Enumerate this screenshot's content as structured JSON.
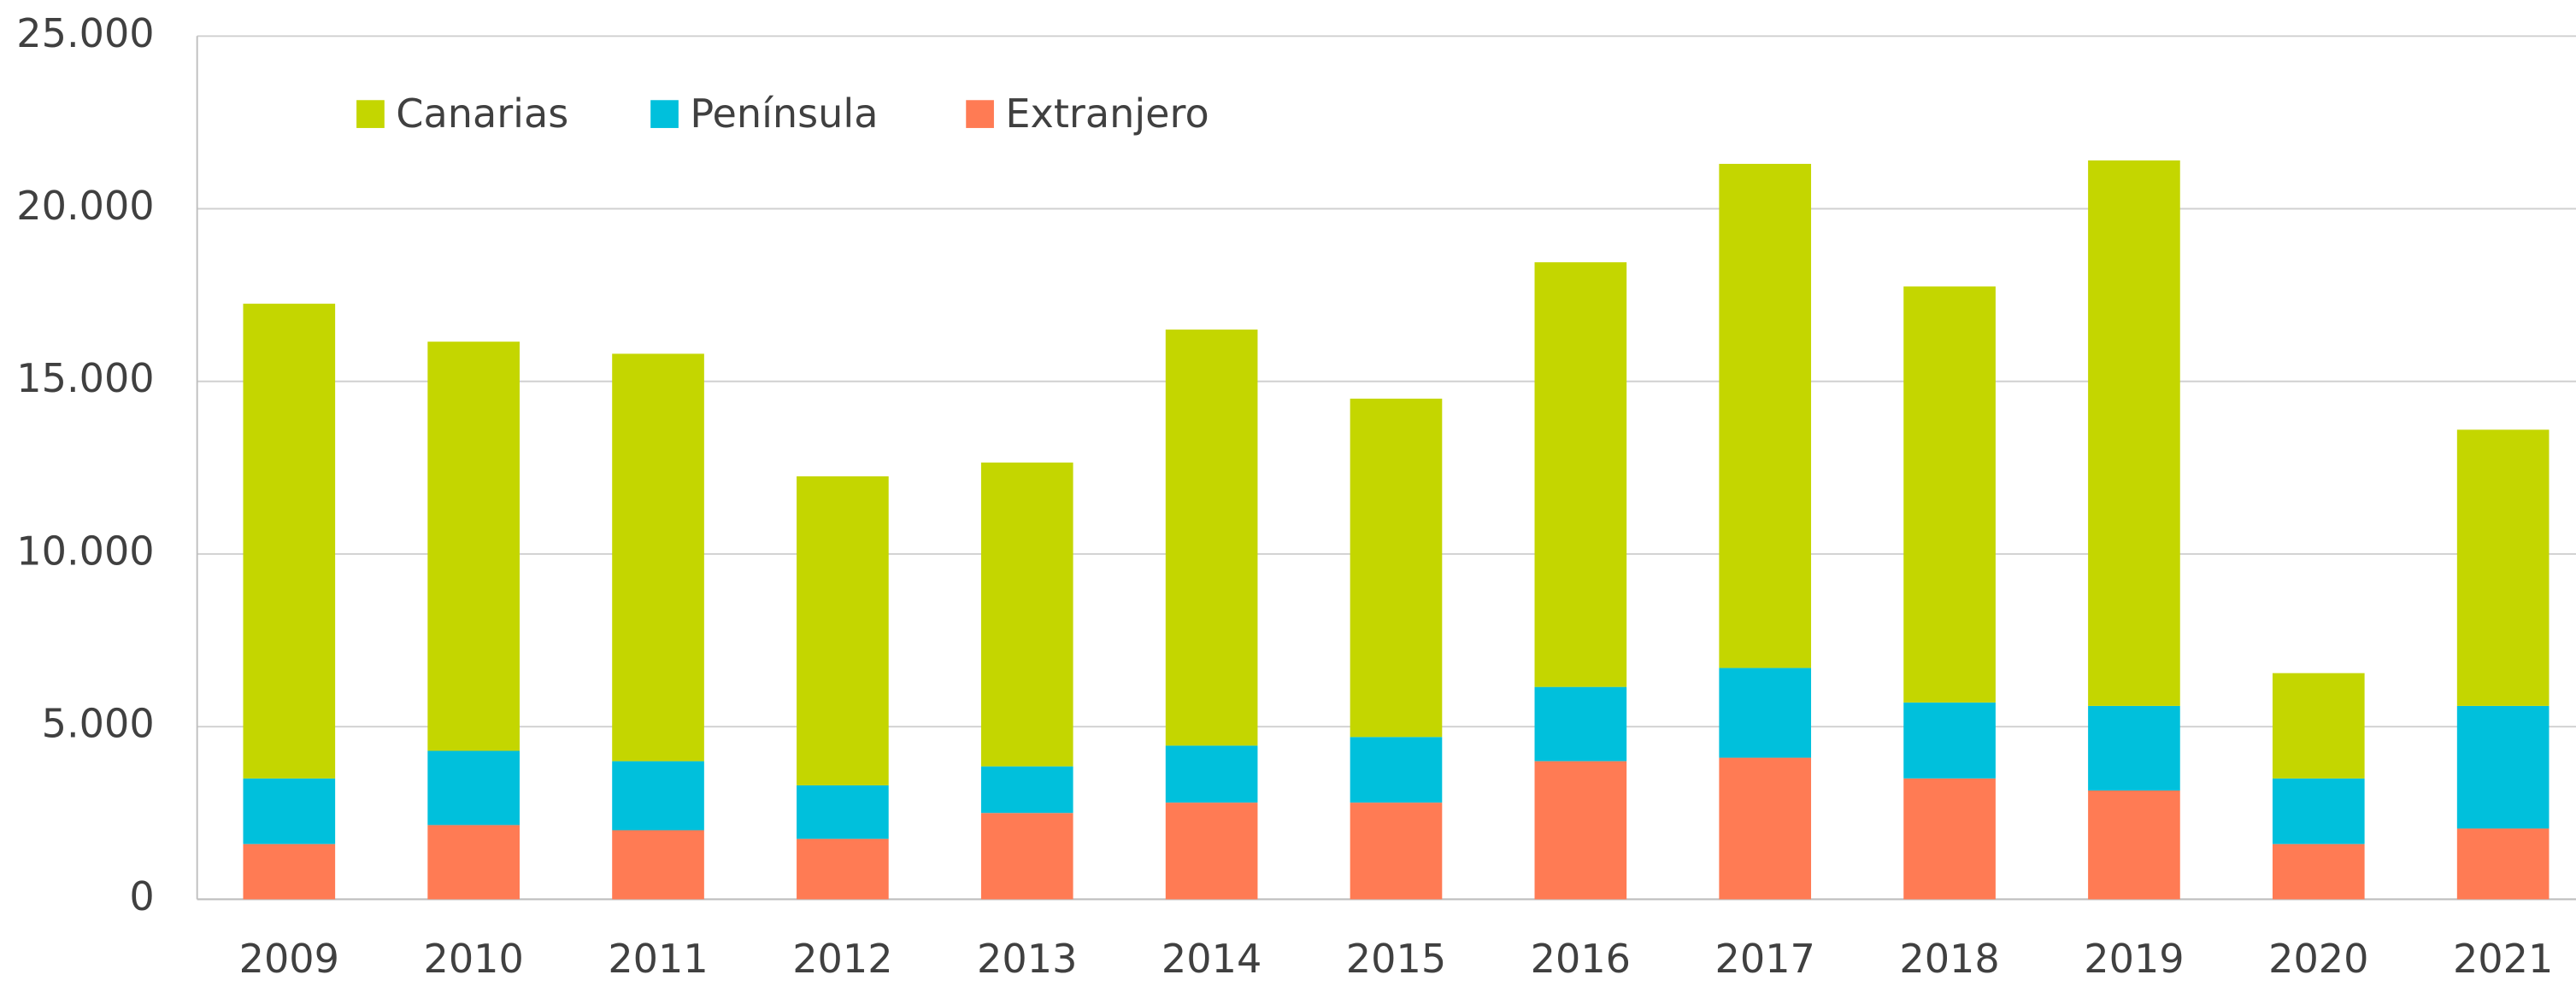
{
  "chart_data": {
    "type": "stacked_bar",
    "categories": [
      "2009",
      "2010",
      "2011",
      "2012",
      "2013",
      "2014",
      "2015",
      "2016",
      "2017",
      "2018",
      "2019",
      "2020",
      "2021"
    ],
    "series": [
      {
        "name": "Canarias",
        "color": "#c4d600",
        "values": [
          13750,
          11850,
          11800,
          8950,
          8800,
          12050,
          9800,
          12300,
          14600,
          12050,
          15800,
          3050,
          8000
        ]
      },
      {
        "name": "Península",
        "color": "#00c0dc",
        "values": [
          1900,
          2150,
          2000,
          1550,
          1350,
          1650,
          1900,
          2150,
          2600,
          2200,
          2450,
          1900,
          3550
        ]
      },
      {
        "name": "Extranjero",
        "color": "#ff7b54",
        "values": [
          1600,
          2150,
          2000,
          1750,
          2500,
          2800,
          2800,
          4000,
          4100,
          3500,
          3150,
          1600,
          2050
        ]
      }
    ],
    "ylim": [
      0,
      25000
    ],
    "yticks": [
      0,
      {
        "value": 5000,
        "label": "5.000"
      },
      {
        "value": 10000,
        "label": "10.000"
      },
      {
        "value": 15000,
        "label": "15.000"
      },
      {
        "value": 20000,
        "label": "20.000"
      },
      {
        "value": 25000,
        "label": "25.000"
      }
    ],
    "grid": true,
    "legend": "top-left"
  }
}
